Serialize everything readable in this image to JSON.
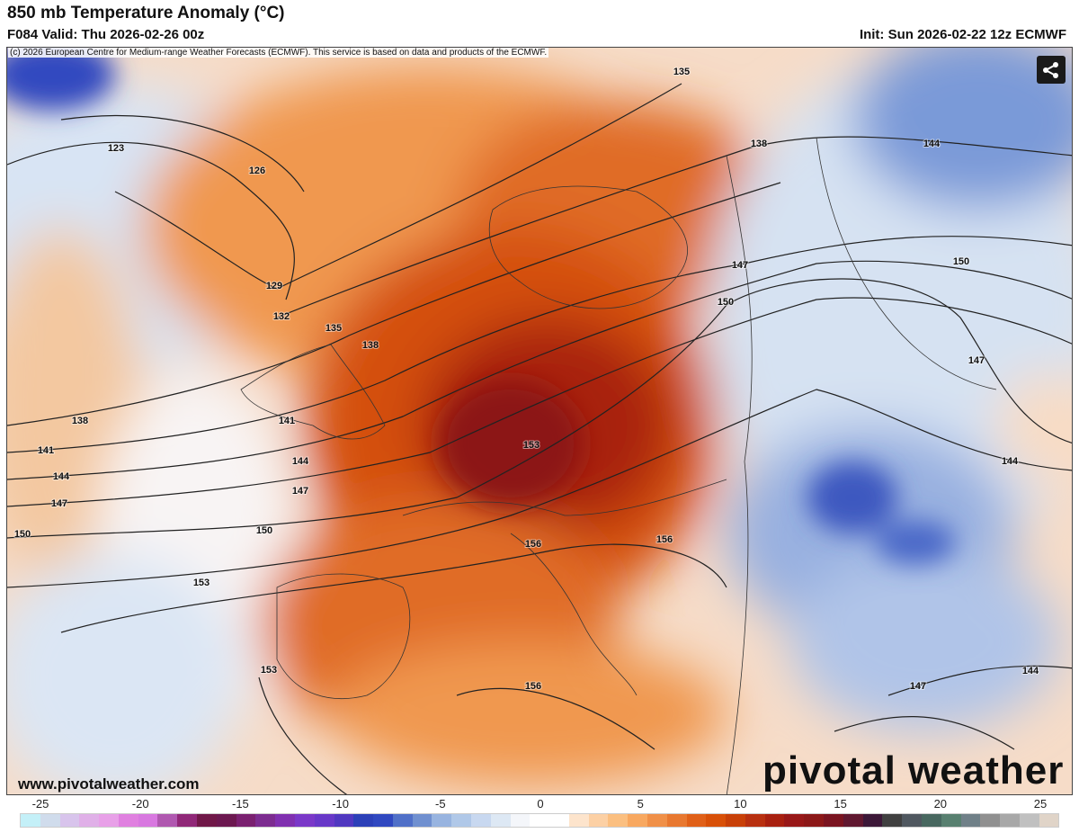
{
  "header": {
    "title": "850 mb Temperature Anomaly (°C)",
    "valid": "F084 Valid: Thu 2026-02-26 00z",
    "init": "Init: Sun 2026-02-22 12z ECMWF"
  },
  "copyright": "(c) 2026 European Centre for Medium-range Weather Forecasts (ECMWF). This service is based on data and products of the ECMWF.",
  "share_icon": "share-icon",
  "website": "www.pivotalweather.com",
  "logo": "pivotal weather",
  "contour_labels": [
    "135",
    "123",
    "126",
    "138",
    "144",
    "129",
    "147",
    "150",
    "132",
    "135",
    "150",
    "138",
    "147",
    "138",
    "141",
    "141",
    "144",
    "153",
    "144",
    "144",
    "147",
    "147",
    "150",
    "150",
    "156",
    "156",
    "153",
    "153",
    "156",
    "144",
    "147"
  ],
  "colorbar": {
    "units": "°C",
    "ticks": [
      "-25",
      "-20",
      "-15",
      "-10",
      "-5",
      "0",
      "5",
      "10",
      "15",
      "20",
      "25"
    ],
    "range": [
      -25,
      25
    ],
    "colors": [
      "#c4f0f8",
      "#d0dcec",
      "#d8c4ec",
      "#e0b0e8",
      "#e8a0e8",
      "#e080e0",
      "#d878e0",
      "#b058b0",
      "#902878",
      "#701848",
      "#6c1850",
      "#7a2070",
      "#7c2c90",
      "#8030b0",
      "#7a38c8",
      "#6838c8",
      "#5038c0",
      "#2c40b8",
      "#3048c0",
      "#5070c8",
      "#7090d0",
      "#98b4e0",
      "#b0c8e8",
      "#c8d8f0",
      "#dde8f4",
      "#f4f6fa",
      "#ffffff",
      "#ffffff",
      "#fde4cc",
      "#fcd0a4",
      "#fbbf80",
      "#f8a860",
      "#f09048",
      "#e87830",
      "#e06018",
      "#d85008",
      "#c84008",
      "#b83010",
      "#a82010",
      "#981818",
      "#8c1818",
      "#7a1420",
      "#601830",
      "#3c1838",
      "#404040",
      "#505860",
      "#486860",
      "#588070",
      "#708088",
      "#909090",
      "#a8a8a8",
      "#c0c0c0",
      "#e0d4c8"
    ]
  }
}
